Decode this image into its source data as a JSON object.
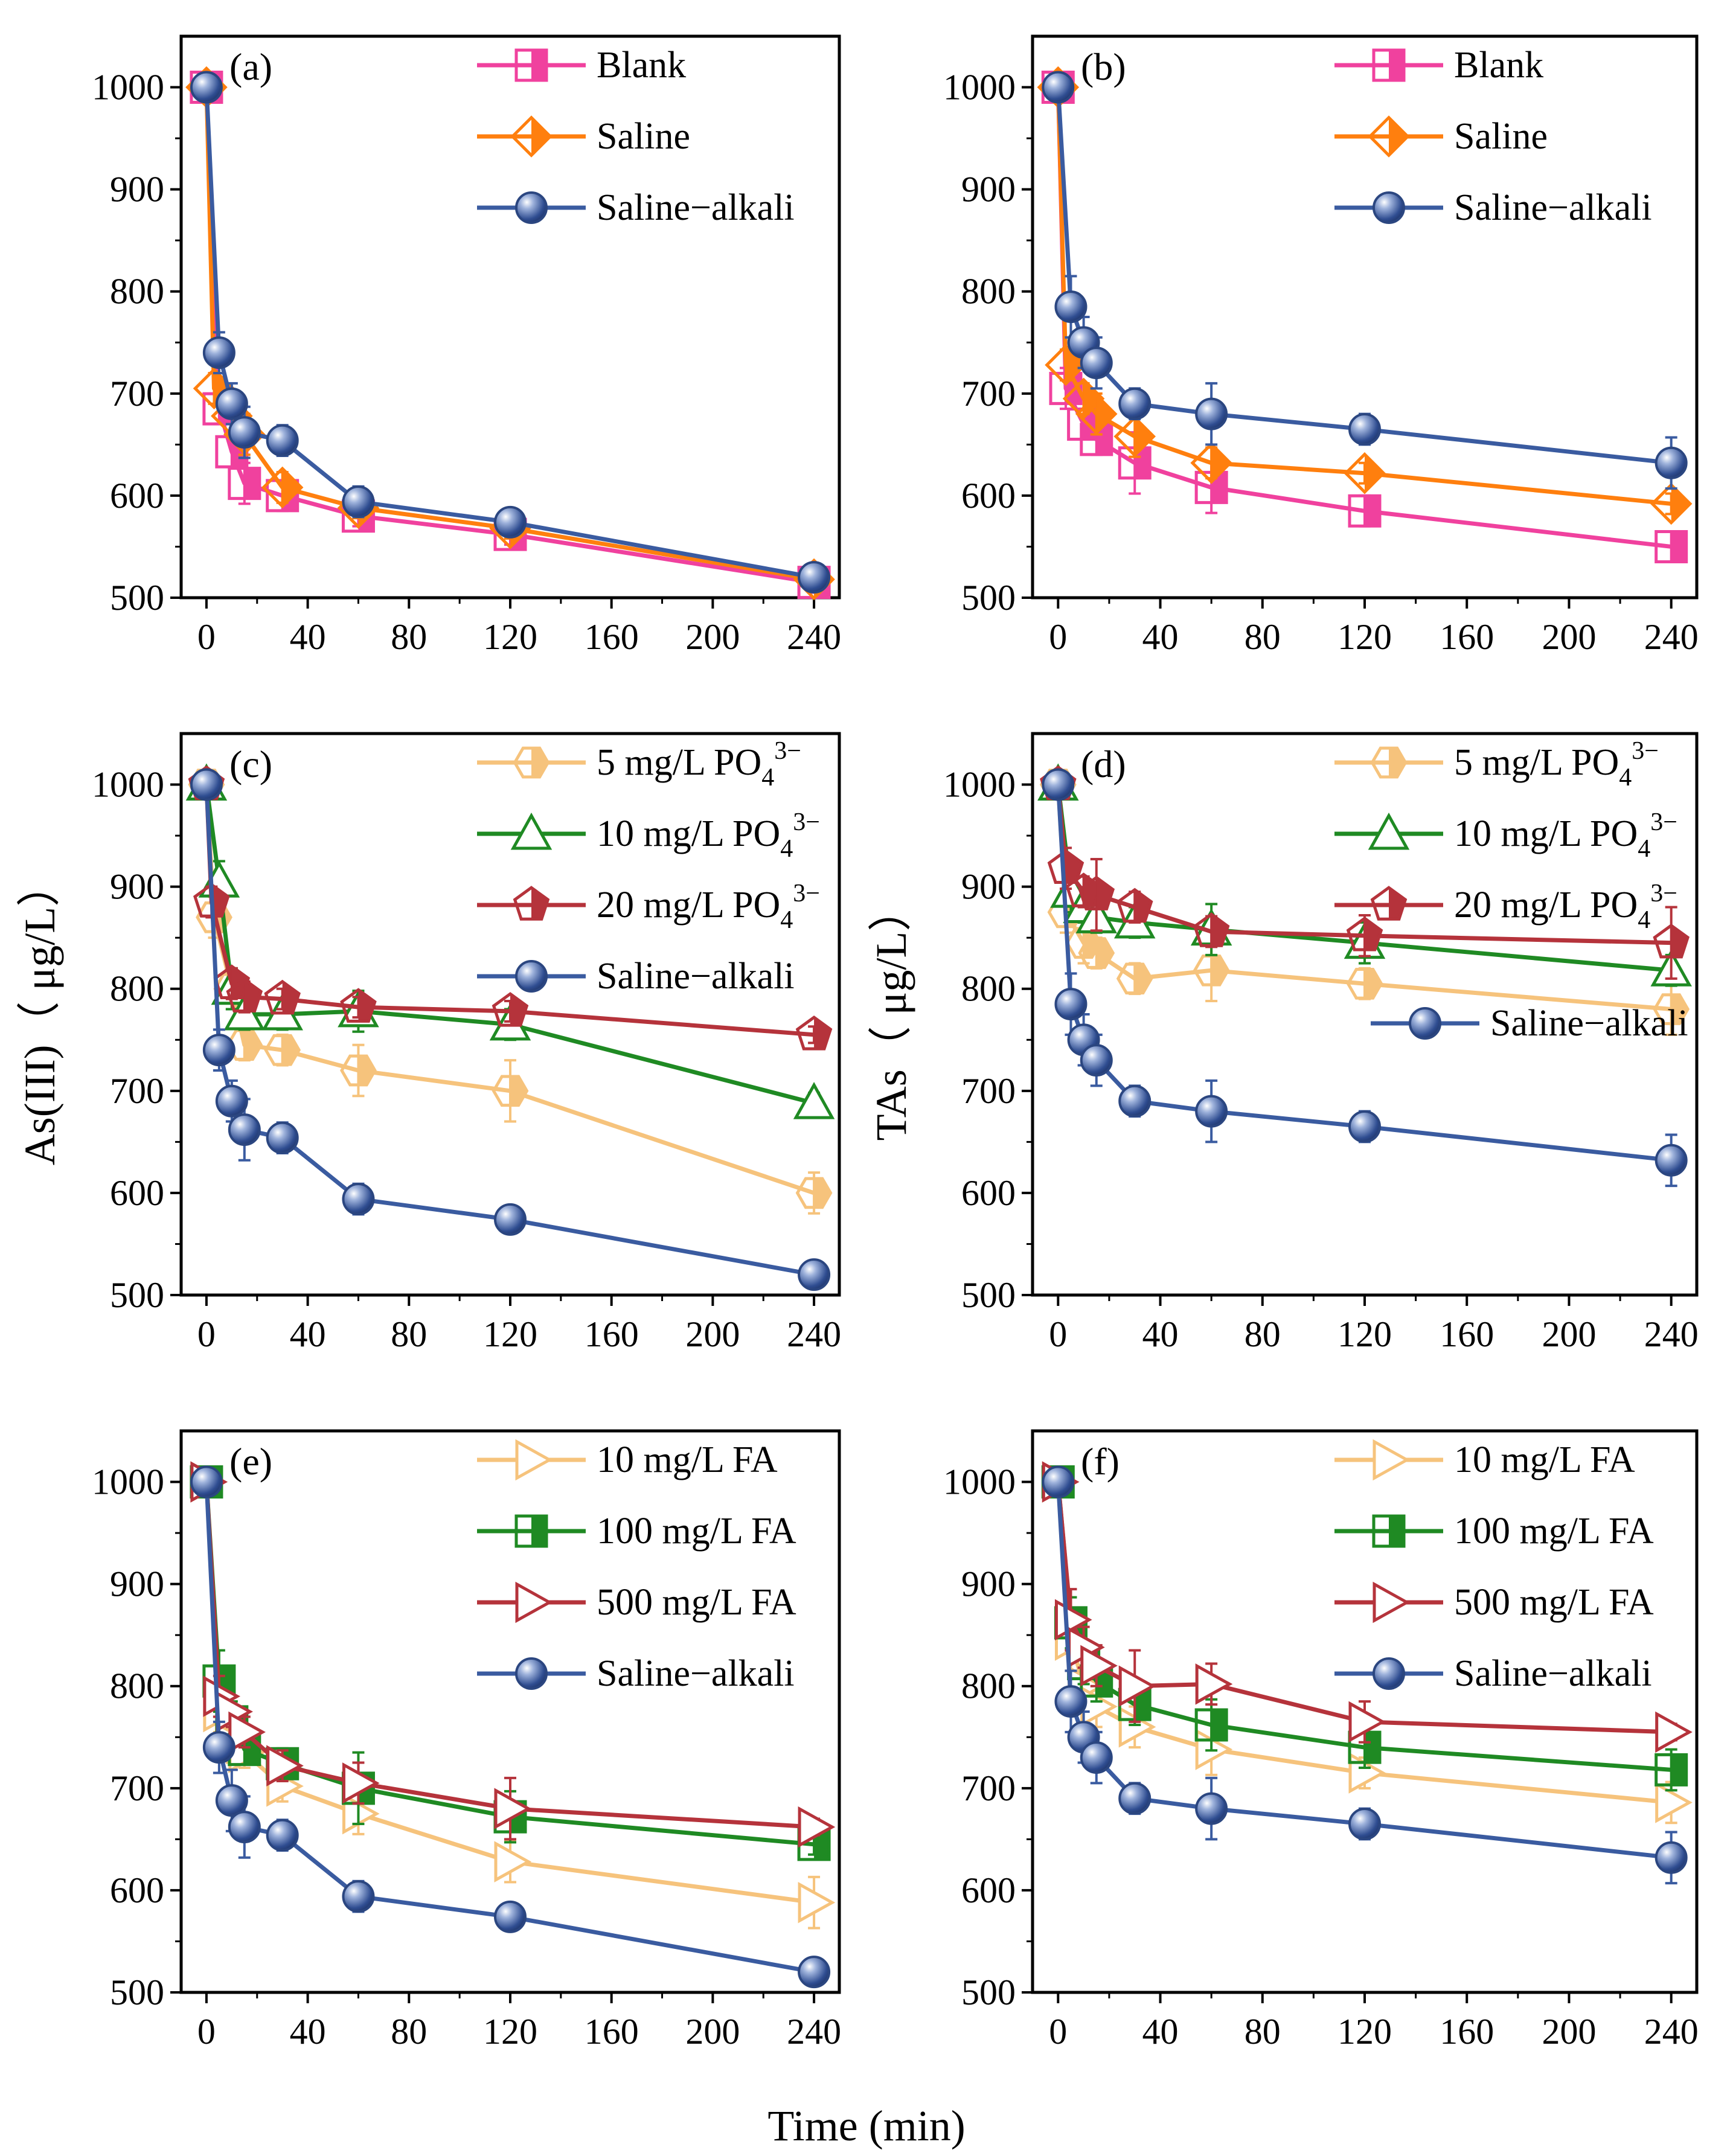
{
  "figure": {
    "xlabel": "Time (min)"
  },
  "colors": {
    "blank": "#f0419e",
    "saline": "#ff7f0e",
    "alkali": "#3a5ba0",
    "p5": "#f6c37c",
    "p10": "#1f8a23",
    "p20": "#b5333b",
    "fa10": "#f6c37c",
    "fa100": "#1f8a23",
    "fa500": "#b5333b"
  },
  "chart_data": [
    {
      "type": "line",
      "panel": "(a)",
      "ylabel": "",
      "xlim": [
        -10,
        250
      ],
      "ylim": [
        500,
        1050
      ],
      "xticks": [
        0,
        40,
        80,
        120,
        160,
        200,
        240
      ],
      "yticks": [
        500,
        600,
        700,
        800,
        900,
        1000
      ],
      "legend": "top-right",
      "series": [
        {
          "name": "Blank",
          "color_key": "blank",
          "marker": "square-half",
          "x": [
            0,
            5,
            10,
            15,
            30,
            60,
            120,
            240
          ],
          "y": [
            1000,
            685,
            643,
            612,
            600,
            580,
            562,
            515
          ],
          "err": [
            8,
            15,
            15,
            20,
            15,
            10,
            10,
            10
          ]
        },
        {
          "name": "Saline",
          "color_key": "saline",
          "marker": "diamond-half",
          "x": [
            0,
            3,
            10,
            15,
            30,
            60,
            120,
            240
          ],
          "y": [
            1000,
            705,
            678,
            660,
            608,
            588,
            568,
            518
          ],
          "err": [
            8,
            15,
            15,
            20,
            15,
            10,
            10,
            10
          ]
        },
        {
          "name": "Saline−alkali",
          "color_key": "alkali",
          "marker": "sphere",
          "x": [
            0,
            5,
            10,
            15,
            30,
            60,
            120,
            240
          ],
          "y": [
            1000,
            740,
            690,
            662,
            654,
            594,
            574,
            520
          ],
          "err": [
            8,
            20,
            20,
            25,
            15,
            15,
            10,
            8
          ]
        }
      ]
    },
    {
      "type": "line",
      "panel": "(b)",
      "ylabel": "",
      "xlim": [
        -10,
        250
      ],
      "ylim": [
        500,
        1050
      ],
      "xticks": [
        0,
        40,
        80,
        120,
        160,
        200,
        240
      ],
      "yticks": [
        500,
        600,
        700,
        800,
        900,
        1000
      ],
      "legend": "top-right",
      "series": [
        {
          "name": "Blank",
          "color_key": "blank",
          "marker": "square-half",
          "x": [
            0,
            3,
            10,
            15,
            30,
            60,
            120,
            240
          ],
          "y": [
            1000,
            705,
            670,
            655,
            632,
            608,
            585,
            550
          ],
          "err": [
            8,
            20,
            15,
            15,
            30,
            25,
            15,
            15
          ]
        },
        {
          "name": "Saline",
          "color_key": "saline",
          "marker": "diamond-half",
          "x": [
            0,
            3,
            10,
            15,
            30,
            60,
            120,
            240
          ],
          "y": [
            1000,
            728,
            695,
            680,
            658,
            632,
            622,
            592
          ],
          "err": [
            8,
            15,
            15,
            20,
            20,
            15,
            10,
            10
          ]
        },
        {
          "name": "Saline−alkali",
          "color_key": "alkali",
          "marker": "sphere",
          "x": [
            0,
            5,
            10,
            15,
            30,
            60,
            120,
            240
          ],
          "y": [
            1000,
            785,
            750,
            730,
            690,
            680,
            665,
            632
          ],
          "err": [
            8,
            30,
            25,
            25,
            15,
            30,
            15,
            25
          ]
        }
      ]
    },
    {
      "type": "line",
      "panel": "(c)",
      "ylabel": "As(III)（ μg/L）",
      "xlim": [
        -10,
        250
      ],
      "ylim": [
        500,
        1050
      ],
      "xticks": [
        0,
        40,
        80,
        120,
        160,
        200,
        240
      ],
      "yticks": [
        500,
        600,
        700,
        800,
        900,
        1000
      ],
      "legend": "top-right",
      "series": [
        {
          "name": "5 mg/L PO",
          "sup": "3−",
          "sub": "4",
          "color_key": "p5",
          "marker": "hexagon-half",
          "x": [
            0,
            3,
            10,
            15,
            30,
            60,
            120,
            240
          ],
          "y": [
            1000,
            870,
            800,
            745,
            740,
            720,
            700,
            600
          ],
          "err": [
            8,
            20,
            20,
            15,
            15,
            25,
            30,
            20
          ]
        },
        {
          "name": "10 mg/L PO",
          "sup": "3−",
          "sub": "4",
          "color_key": "p10",
          "marker": "triangle",
          "x": [
            0,
            5,
            10,
            15,
            30,
            60,
            120,
            240
          ],
          "y": [
            1000,
            905,
            800,
            775,
            775,
            778,
            765,
            688
          ],
          "err": [
            8,
            20,
            20,
            15,
            15,
            20,
            15,
            10
          ]
        },
        {
          "name": "20 mg/L PO",
          "sup": "3−",
          "sub": "4",
          "color_key": "p20",
          "marker": "pentagon-half",
          "x": [
            0,
            2,
            10,
            15,
            30,
            60,
            120,
            240
          ],
          "y": [
            1000,
            885,
            805,
            792,
            790,
            782,
            778,
            755
          ],
          "err": [
            8,
            15,
            15,
            15,
            10,
            10,
            10,
            8
          ]
        },
        {
          "name": "Saline−alkali",
          "color_key": "alkali",
          "marker": "sphere",
          "x": [
            0,
            5,
            10,
            15,
            30,
            60,
            120,
            240
          ],
          "y": [
            1000,
            740,
            690,
            662,
            654,
            594,
            574,
            520
          ],
          "err": [
            8,
            20,
            20,
            30,
            15,
            15,
            10,
            8
          ]
        }
      ]
    },
    {
      "type": "line",
      "panel": "(d)",
      "ylabel": "TAs（ μg/L）",
      "xlim": [
        -10,
        250
      ],
      "ylim": [
        500,
        1050
      ],
      "xticks": [
        0,
        40,
        80,
        120,
        160,
        200,
        240
      ],
      "yticks": [
        500,
        600,
        700,
        800,
        900,
        1000
      ],
      "legend": "top-right",
      "series": [
        {
          "name": "5 mg/L PO",
          "sup": "3−",
          "sub": "4",
          "color_key": "p5",
          "marker": "hexagon-half",
          "x": [
            0,
            3,
            10,
            15,
            30,
            60,
            120,
            240
          ],
          "y": [
            1000,
            875,
            845,
            835,
            810,
            818,
            805,
            780
          ],
          "err": [
            8,
            20,
            20,
            15,
            15,
            30,
            15,
            25
          ]
        },
        {
          "name": "10 mg/L PO",
          "sup": "3−",
          "sub": "4",
          "color_key": "p10",
          "marker": "triangle",
          "x": [
            0,
            5,
            10,
            15,
            30,
            60,
            120,
            240
          ],
          "y": [
            1000,
            895,
            880,
            870,
            865,
            858,
            845,
            818
          ],
          "err": [
            8,
            20,
            15,
            15,
            15,
            25,
            20,
            15
          ]
        },
        {
          "name": "20 mg/L PO",
          "sup": "3−",
          "sub": "4",
          "color_key": "p20",
          "marker": "pentagon-half",
          "x": [
            0,
            3,
            10,
            15,
            30,
            60,
            120,
            240
          ],
          "y": [
            1000,
            918,
            895,
            892,
            880,
            856,
            852,
            845
          ],
          "err": [
            8,
            20,
            15,
            35,
            15,
            15,
            20,
            35
          ]
        },
        {
          "name": "Saline−alkali",
          "color_key": "alkali",
          "marker": "sphere",
          "x": [
            0,
            5,
            10,
            15,
            30,
            60,
            120,
            240
          ],
          "y": [
            1000,
            785,
            750,
            730,
            690,
            680,
            665,
            632
          ],
          "err": [
            8,
            30,
            25,
            25,
            15,
            30,
            15,
            25
          ]
        }
      ]
    },
    {
      "type": "line",
      "panel": "(e)",
      "ylabel": "",
      "xlim": [
        -10,
        250
      ],
      "ylim": [
        500,
        1050
      ],
      "xticks": [
        0,
        40,
        80,
        120,
        160,
        200,
        240
      ],
      "yticks": [
        500,
        600,
        700,
        800,
        900,
        1000
      ],
      "legend": "top-right",
      "series": [
        {
          "name": "10 mg/L FA",
          "color_key": "fa10",
          "marker": "tri-right",
          "x": [
            0,
            5,
            10,
            15,
            30,
            60,
            120,
            240
          ],
          "y": [
            1000,
            775,
            745,
            735,
            702,
            675,
            628,
            588
          ],
          "err": [
            8,
            20,
            20,
            15,
            15,
            20,
            20,
            25
          ]
        },
        {
          "name": "100 mg/L FA",
          "color_key": "fa100",
          "marker": "square-half",
          "x": [
            0,
            5,
            10,
            15,
            30,
            60,
            120,
            240
          ],
          "y": [
            1000,
            805,
            765,
            738,
            724,
            700,
            672,
            645
          ],
          "err": [
            8,
            30,
            20,
            15,
            15,
            35,
            25,
            10
          ]
        },
        {
          "name": "500 mg/L FA",
          "color_key": "fa500",
          "marker": "tri-right",
          "x": [
            0,
            5,
            10,
            15,
            30,
            60,
            120,
            240
          ],
          "y": [
            1000,
            790,
            775,
            755,
            722,
            705,
            680,
            662
          ],
          "err": [
            8,
            20,
            15,
            15,
            15,
            20,
            30,
            8
          ]
        },
        {
          "name": "Saline−alkali",
          "color_key": "alkali",
          "marker": "sphere",
          "x": [
            0,
            5,
            10,
            15,
            30,
            60,
            120,
            240
          ],
          "y": [
            1000,
            740,
            688,
            662,
            654,
            594,
            574,
            520
          ],
          "err": [
            8,
            25,
            30,
            30,
            15,
            15,
            10,
            8
          ]
        }
      ]
    },
    {
      "type": "line",
      "panel": "(f)",
      "ylabel": "",
      "xlim": [
        -10,
        250
      ],
      "ylim": [
        500,
        1050
      ],
      "xticks": [
        0,
        40,
        80,
        120,
        160,
        200,
        240
      ],
      "yticks": [
        500,
        600,
        700,
        800,
        900,
        1000
      ],
      "legend": "top-right",
      "series": [
        {
          "name": "10 mg/L FA",
          "color_key": "fa10",
          "marker": "tri-right",
          "x": [
            0,
            5,
            10,
            15,
            30,
            60,
            120,
            240
          ],
          "y": [
            1000,
            845,
            800,
            780,
            760,
            738,
            715,
            686
          ],
          "err": [
            8,
            30,
            20,
            20,
            20,
            25,
            15,
            20
          ]
        },
        {
          "name": "100 mg/L FA",
          "color_key": "fa100",
          "marker": "square-half",
          "x": [
            0,
            5,
            10,
            15,
            30,
            60,
            120,
            240
          ],
          "y": [
            1000,
            862,
            822,
            805,
            782,
            762,
            740,
            718
          ],
          "err": [
            8,
            25,
            20,
            20,
            20,
            25,
            20,
            20
          ]
        },
        {
          "name": "500 mg/L FA",
          "color_key": "fa500",
          "marker": "tri-right",
          "x": [
            0,
            5,
            10,
            15,
            30,
            60,
            120,
            240
          ],
          "y": [
            1000,
            865,
            838,
            820,
            800,
            802,
            765,
            755
          ],
          "err": [
            8,
            30,
            20,
            20,
            35,
            20,
            20,
            8
          ]
        },
        {
          "name": "Saline−alkali",
          "color_key": "alkali",
          "marker": "sphere",
          "x": [
            0,
            5,
            10,
            15,
            30,
            60,
            120,
            240
          ],
          "y": [
            1000,
            785,
            750,
            730,
            690,
            680,
            665,
            632
          ],
          "err": [
            8,
            30,
            25,
            25,
            15,
            30,
            15,
            25
          ]
        }
      ]
    }
  ]
}
